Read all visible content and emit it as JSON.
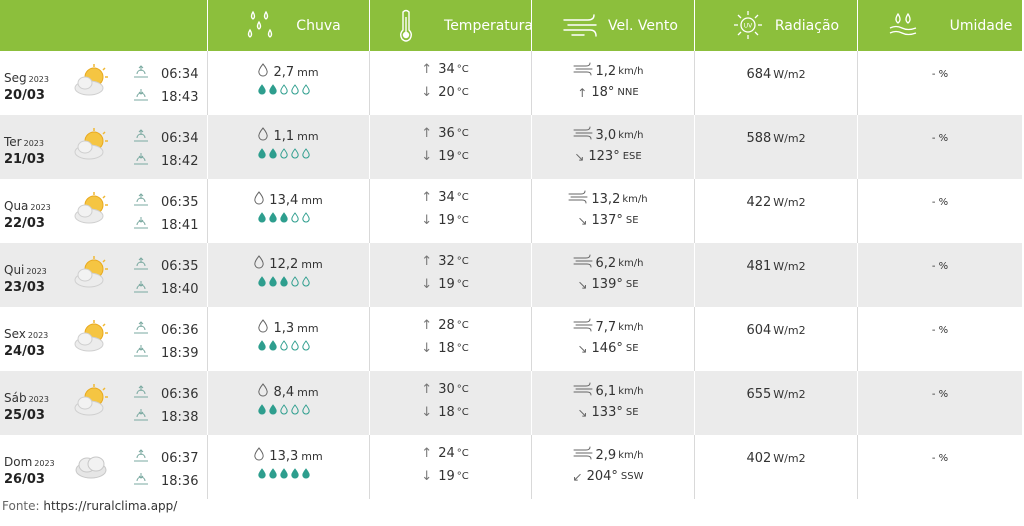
{
  "header": {
    "chuva": "Chuva",
    "temperatura": "Temperatura",
    "vento": "Vel. Vento",
    "radiacao": "Radiação",
    "umidade": "Umidade"
  },
  "days": [
    {
      "name": "Seg",
      "year": "2023",
      "date": "20/03",
      "sunrise": "06:34",
      "sunset": "18:43",
      "rain": "2,7",
      "rain_unit": "mm",
      "drops": 2,
      "tmax": "34",
      "tmin": "20",
      "temp_unit": "°C",
      "wind": "1,2",
      "wind_unit": "km/h",
      "wdeg": "18°",
      "wdir": "NNE",
      "warrow": "↑",
      "rad": "684",
      "rad_unit": "W/m2",
      "hum": "- %",
      "icon": "partly-cloudy-icon"
    },
    {
      "name": "Ter",
      "year": "2023",
      "date": "21/03",
      "sunrise": "06:34",
      "sunset": "18:42",
      "rain": "1,1",
      "rain_unit": "mm",
      "drops": 2,
      "tmax": "36",
      "tmin": "19",
      "temp_unit": "°C",
      "wind": "3,0",
      "wind_unit": "km/h",
      "wdeg": "123°",
      "wdir": "ESE",
      "warrow": "↘",
      "rad": "588",
      "rad_unit": "W/m2",
      "hum": "- %",
      "icon": "partly-cloudy-icon"
    },
    {
      "name": "Qua",
      "year": "2023",
      "date": "22/03",
      "sunrise": "06:35",
      "sunset": "18:41",
      "rain": "13,4",
      "rain_unit": "mm",
      "drops": 3,
      "tmax": "34",
      "tmin": "19",
      "temp_unit": "°C",
      "wind": "13,2",
      "wind_unit": "km/h",
      "wdeg": "137°",
      "wdir": "SE",
      "warrow": "↘",
      "rad": "422",
      "rad_unit": "W/m2",
      "hum": "- %",
      "icon": "partly-cloudy-icon"
    },
    {
      "name": "Qui",
      "year": "2023",
      "date": "23/03",
      "sunrise": "06:35",
      "sunset": "18:40",
      "rain": "12,2",
      "rain_unit": "mm",
      "drops": 3,
      "tmax": "32",
      "tmin": "19",
      "temp_unit": "°C",
      "wind": "6,2",
      "wind_unit": "km/h",
      "wdeg": "139°",
      "wdir": "SE",
      "warrow": "↘",
      "rad": "481",
      "rad_unit": "W/m2",
      "hum": "- %",
      "icon": "partly-cloudy-icon"
    },
    {
      "name": "Sex",
      "year": "2023",
      "date": "24/03",
      "sunrise": "06:36",
      "sunset": "18:39",
      "rain": "1,3",
      "rain_unit": "mm",
      "drops": 2,
      "tmax": "28",
      "tmin": "18",
      "temp_unit": "°C",
      "wind": "7,7",
      "wind_unit": "km/h",
      "wdeg": "146°",
      "wdir": "SE",
      "warrow": "↘",
      "rad": "604",
      "rad_unit": "W/m2",
      "hum": "- %",
      "icon": "partly-cloudy-icon"
    },
    {
      "name": "Sáb",
      "year": "2023",
      "date": "25/03",
      "sunrise": "06:36",
      "sunset": "18:38",
      "rain": "8,4",
      "rain_unit": "mm",
      "drops": 2,
      "tmax": "30",
      "tmin": "18",
      "temp_unit": "°C",
      "wind": "6,1",
      "wind_unit": "km/h",
      "wdeg": "133°",
      "wdir": "SE",
      "warrow": "↘",
      "rad": "655",
      "rad_unit": "W/m2",
      "hum": "- %",
      "icon": "partly-cloudy-icon"
    },
    {
      "name": "Dom",
      "year": "2023",
      "date": "26/03",
      "sunrise": "06:37",
      "sunset": "18:36",
      "rain": "13,3",
      "rain_unit": "mm",
      "drops": 5,
      "tmax": "24",
      "tmin": "19",
      "temp_unit": "°C",
      "wind": "2,9",
      "wind_unit": "km/h",
      "wdeg": "204°",
      "wdir": "SSW",
      "warrow": "↙",
      "rad": "402",
      "rad_unit": "W/m2",
      "hum": "- %",
      "icon": "cloudy-icon"
    }
  ],
  "footer": {
    "label": "Fonte:",
    "link": "https://ruralclima.app/"
  },
  "colors": {
    "header": "#8cbf3c",
    "drop": "#2e9e8e",
    "alt_row": "#ebebeb"
  }
}
